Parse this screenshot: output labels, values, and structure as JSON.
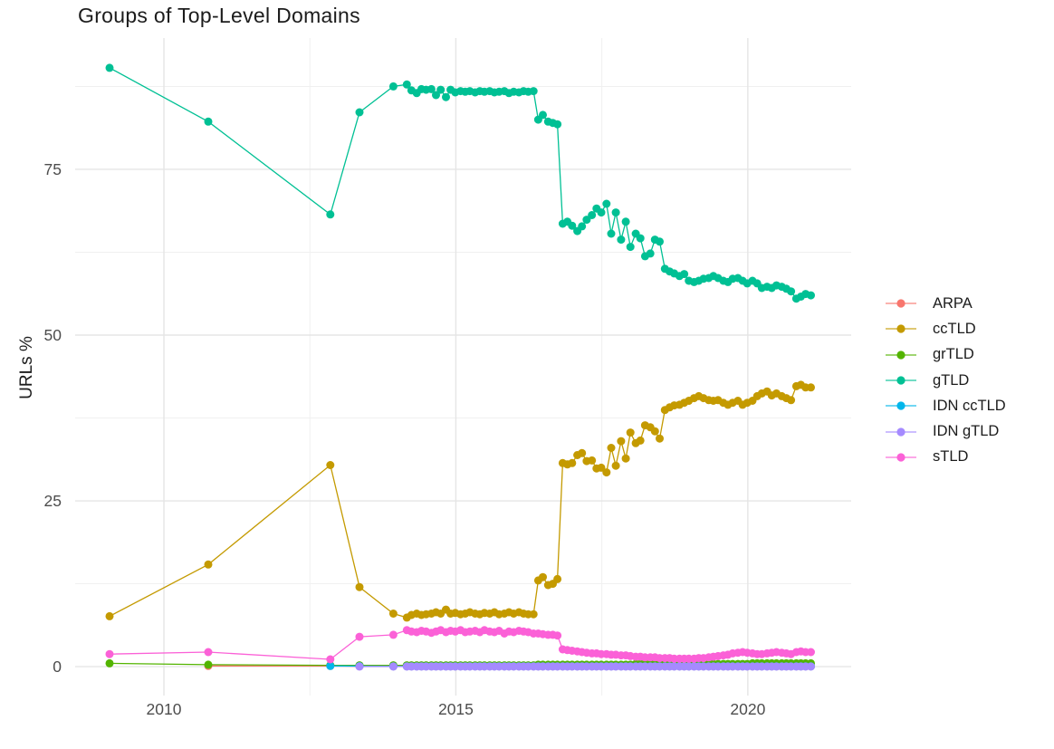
{
  "chart_data": {
    "type": "line",
    "title": "Groups of Top-Level Domains",
    "xlabel": "",
    "ylabel": "URLs %",
    "legend_position": "right",
    "grid": true,
    "x_domain": [
      2008.48,
      2021.77
    ],
    "y_domain": [
      -4.36,
      94.8
    ],
    "x_axis": {
      "tick_values": [
        2010,
        2015,
        2020
      ],
      "tick_labels": [
        "2010",
        "2015",
        "2020"
      ],
      "minor_gridlines": [
        2012.5,
        2017.5
      ]
    },
    "y_axis": {
      "tick_values": [
        0,
        25,
        50,
        75
      ],
      "tick_labels": [
        "0",
        "25",
        "50",
        "75"
      ],
      "minor_gridlines": [
        12.5,
        37.5,
        62.5,
        87.5
      ]
    },
    "x": [
      2009.07,
      2010.76,
      2012.85,
      2013.35,
      2013.93,
      2014.16,
      2014.24,
      2014.33,
      2014.41,
      2014.49,
      2014.58,
      2014.66,
      2014.74,
      2014.83,
      2014.91,
      2014.99,
      2015.08,
      2015.16,
      2015.24,
      2015.33,
      2015.41,
      2015.49,
      2015.58,
      2015.66,
      2015.74,
      2015.83,
      2015.91,
      2015.99,
      2016.08,
      2016.16,
      2016.24,
      2016.33,
      2016.41,
      2016.49,
      2016.58,
      2016.66,
      2016.74,
      2016.83,
      2016.91,
      2016.99,
      2017.08,
      2017.16,
      2017.24,
      2017.33,
      2017.41,
      2017.49,
      2017.58,
      2017.66,
      2017.74,
      2017.83,
      2017.91,
      2017.99,
      2018.08,
      2018.16,
      2018.24,
      2018.33,
      2018.41,
      2018.49,
      2018.58,
      2018.66,
      2018.74,
      2018.83,
      2018.91,
      2018.99,
      2019.08,
      2019.16,
      2019.24,
      2019.33,
      2019.41,
      2019.49,
      2019.58,
      2019.66,
      2019.74,
      2019.83,
      2019.91,
      2019.99,
      2020.08,
      2020.16,
      2020.24,
      2020.33,
      2020.41,
      2020.49,
      2020.58,
      2020.66,
      2020.74,
      2020.83,
      2020.91,
      2020.99,
      2021.08
    ],
    "series": [
      {
        "name": "ARPA",
        "color": "#F8766D",
        "values": [
          null,
          0.1,
          0.1,
          0.05,
          0.05,
          0.05,
          0.05,
          0.05,
          0.05,
          0.05,
          0.05,
          0.05,
          0.05,
          0.05,
          0.05,
          0.05,
          0.05,
          0.05,
          0.05,
          0.05,
          0.05,
          0.05,
          0.05,
          0.05,
          0.05,
          0.05,
          0.05,
          0.05,
          0.05,
          0.05,
          0.05,
          0.05,
          0.05,
          0.05,
          0.05,
          0.05,
          0.05,
          0.05,
          0.05,
          0.05,
          0.05,
          0.05,
          0.05,
          0.05,
          0.05,
          0.05,
          0.05,
          0.05,
          0.05,
          0.05,
          0.05,
          0.05,
          0.05,
          0.05,
          0.05,
          0.05,
          0.05,
          0.05,
          0.05,
          0.05,
          0.05,
          0.05,
          0.05,
          0.05,
          0.05,
          0.05,
          0.05,
          0.05,
          0.05,
          0.05,
          0.05,
          0.05,
          0.05,
          0.05,
          0.05,
          0.05,
          0.05,
          0.05,
          0.05,
          0.05,
          0.05,
          0.05,
          0.05,
          0.05,
          0.05,
          0.05,
          0.05,
          0.05,
          0.05
        ]
      },
      {
        "name": "ccTLD",
        "color": "#C49A00",
        "values": [
          7.6,
          15.4,
          30.4,
          12.0,
          8.0,
          7.4,
          7.8,
          8.0,
          7.8,
          7.9,
          8.0,
          8.2,
          8.0,
          8.6,
          8.0,
          8.1,
          7.9,
          8.0,
          8.2,
          8.0,
          7.9,
          8.1,
          8.0,
          8.2,
          7.9,
          8.0,
          8.2,
          8.0,
          8.2,
          8.0,
          7.9,
          7.9,
          13.0,
          13.5,
          12.3,
          12.5,
          13.2,
          30.7,
          30.5,
          30.7,
          31.9,
          32.2,
          31.0,
          31.1,
          29.9,
          30.0,
          29.3,
          33.0,
          30.3,
          34.0,
          31.4,
          35.3,
          33.7,
          34.1,
          36.4,
          36.1,
          35.5,
          34.4,
          38.7,
          39.1,
          39.4,
          39.5,
          39.8,
          40.1,
          40.5,
          40.8,
          40.5,
          40.2,
          40.1,
          40.2,
          39.8,
          39.5,
          39.8,
          40.1,
          39.5,
          39.8,
          40.1,
          40.8,
          41.2,
          41.5,
          40.9,
          41.2,
          40.8,
          40.5,
          40.2,
          42.3,
          42.5,
          42.1,
          42.1
        ]
      },
      {
        "name": "grTLD",
        "color": "#53B400",
        "values": [
          0.5,
          0.3,
          0.2,
          0.2,
          0.2,
          0.2,
          0.2,
          0.2,
          0.2,
          0.2,
          0.2,
          0.2,
          0.2,
          0.2,
          0.2,
          0.2,
          0.2,
          0.2,
          0.2,
          0.2,
          0.2,
          0.2,
          0.2,
          0.2,
          0.2,
          0.2,
          0.2,
          0.2,
          0.2,
          0.2,
          0.2,
          0.2,
          0.3,
          0.3,
          0.3,
          0.3,
          0.3,
          0.3,
          0.3,
          0.3,
          0.3,
          0.3,
          0.3,
          0.3,
          0.3,
          0.3,
          0.3,
          0.3,
          0.3,
          0.3,
          0.3,
          0.3,
          0.4,
          0.4,
          0.4,
          0.4,
          0.4,
          0.4,
          0.4,
          0.4,
          0.4,
          0.4,
          0.4,
          0.4,
          0.4,
          0.4,
          0.4,
          0.4,
          0.4,
          0.4,
          0.4,
          0.4,
          0.4,
          0.4,
          0.4,
          0.4,
          0.5,
          0.5,
          0.5,
          0.5,
          0.5,
          0.5,
          0.5,
          0.5,
          0.5,
          0.5,
          0.5,
          0.5,
          0.5
        ]
      },
      {
        "name": "gTLD",
        "color": "#00C094",
        "values": [
          90.3,
          82.2,
          68.2,
          83.6,
          87.5,
          87.8,
          86.9,
          86.5,
          87.1,
          87.0,
          87.1,
          86.2,
          87.0,
          85.9,
          87.0,
          86.6,
          86.8,
          86.7,
          86.8,
          86.6,
          86.8,
          86.7,
          86.8,
          86.6,
          86.7,
          86.8,
          86.5,
          86.7,
          86.6,
          86.8,
          86.7,
          86.8,
          82.5,
          83.2,
          82.2,
          82.0,
          81.8,
          66.8,
          67.1,
          66.5,
          65.7,
          66.4,
          67.4,
          68.1,
          69.1,
          68.5,
          69.8,
          65.3,
          68.5,
          64.4,
          67.1,
          63.3,
          65.3,
          64.6,
          61.9,
          62.3,
          64.4,
          64.1,
          60.0,
          59.6,
          59.3,
          58.9,
          59.2,
          58.2,
          58.0,
          58.2,
          58.5,
          58.6,
          58.9,
          58.6,
          58.2,
          58.0,
          58.5,
          58.6,
          58.2,
          57.8,
          58.2,
          57.8,
          57.1,
          57.3,
          57.1,
          57.5,
          57.3,
          57.0,
          56.6,
          55.5,
          55.8,
          56.2,
          56.0
        ]
      },
      {
        "name": "IDN ccTLD",
        "color": "#00B6EB",
        "values": [
          null,
          null,
          0.1,
          0.08,
          0.05,
          0.05,
          0.05,
          0.05,
          0.05,
          0.05,
          0.05,
          0.05,
          0.05,
          0.05,
          0.05,
          0.05,
          0.05,
          0.05,
          0.05,
          0.05,
          0.05,
          0.05,
          0.05,
          0.05,
          0.05,
          0.05,
          0.05,
          0.05,
          0.05,
          0.05,
          0.05,
          0.05,
          0.05,
          0.05,
          0.05,
          0.05,
          0.05,
          0.05,
          0.05,
          0.05,
          0.05,
          0.05,
          0.05,
          0.05,
          0.05,
          0.05,
          0.05,
          0.05,
          0.05,
          0.05,
          0.05,
          0.05,
          0.05,
          0.05,
          0.05,
          0.05,
          0.05,
          0.05,
          0.05,
          0.05,
          0.05,
          0.05,
          0.05,
          0.05,
          0.05,
          0.05,
          0.05,
          0.05,
          0.05,
          0.05,
          0.05,
          0.05,
          0.05,
          0.05,
          0.05,
          0.05,
          0.05,
          0.05,
          0.05,
          0.05,
          0.05,
          0.05,
          0.05,
          0.05,
          0.05,
          0.05,
          0.05,
          0.05,
          0.05
        ]
      },
      {
        "name": "IDN gTLD",
        "color": "#A58AFF",
        "values": [
          null,
          null,
          null,
          0.02,
          0.02,
          0.02,
          0.02,
          0.02,
          0.02,
          0.02,
          0.02,
          0.02,
          0.02,
          0.02,
          0.02,
          0.02,
          0.02,
          0.02,
          0.02,
          0.02,
          0.02,
          0.02,
          0.02,
          0.02,
          0.02,
          0.02,
          0.02,
          0.02,
          0.02,
          0.02,
          0.02,
          0.02,
          0.02,
          0.02,
          0.02,
          0.02,
          0.02,
          0.02,
          0.02,
          0.02,
          0.02,
          0.02,
          0.02,
          0.02,
          0.02,
          0.02,
          0.02,
          0.02,
          0.02,
          0.02,
          0.02,
          0.02,
          0.02,
          0.02,
          0.02,
          0.02,
          0.02,
          0.02,
          0.02,
          0.02,
          0.02,
          0.02,
          0.02,
          0.02,
          0.02,
          0.02,
          0.02,
          0.02,
          0.02,
          0.02,
          0.02,
          0.02,
          0.02,
          0.02,
          0.02,
          0.02,
          0.02,
          0.02,
          0.02,
          0.02,
          0.02,
          0.02,
          0.02,
          0.02,
          0.02,
          0.02,
          0.02,
          0.02,
          0.02
        ]
      },
      {
        "name": "sTLD",
        "color": "#FB61D7",
        "values": [
          1.9,
          2.2,
          1.1,
          4.5,
          4.8,
          5.5,
          5.3,
          5.2,
          5.4,
          5.3,
          5.1,
          5.3,
          5.5,
          5.2,
          5.4,
          5.3,
          5.5,
          5.2,
          5.3,
          5.4,
          5.2,
          5.5,
          5.3,
          5.2,
          5.4,
          5.0,
          5.3,
          5.2,
          5.4,
          5.3,
          5.2,
          5.0,
          5.0,
          4.9,
          4.8,
          4.8,
          4.7,
          2.6,
          2.5,
          2.4,
          2.3,
          2.2,
          2.1,
          2.0,
          2.0,
          1.9,
          1.9,
          1.8,
          1.8,
          1.7,
          1.7,
          1.6,
          1.5,
          1.5,
          1.4,
          1.4,
          1.4,
          1.3,
          1.3,
          1.3,
          1.2,
          1.2,
          1.2,
          1.2,
          1.2,
          1.3,
          1.3,
          1.4,
          1.5,
          1.6,
          1.7,
          1.8,
          2.0,
          2.1,
          2.2,
          2.1,
          2.0,
          1.9,
          1.9,
          2.0,
          2.1,
          2.2,
          2.1,
          2.0,
          1.9,
          2.2,
          2.3,
          2.2,
          2.2
        ]
      }
    ],
    "colors": {
      "background": "#FFFFFF",
      "major_gridline": "#E5E5E5",
      "minor_gridline": "#F0F0F0",
      "tick_label": "#4d4d4d",
      "title_text": "#1c1c1c"
    }
  }
}
